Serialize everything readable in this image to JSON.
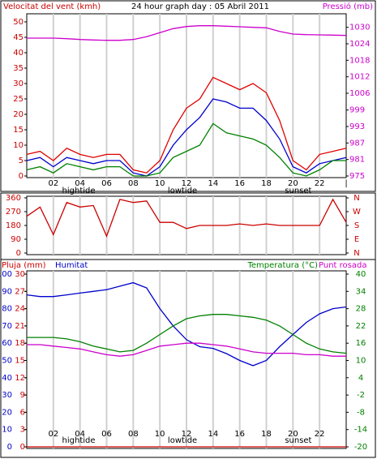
{
  "chart_data": [
    {
      "type": "line",
      "title": "24 hour graph day : 05 Abril 2011",
      "y_label": "Velocitat del vent (kmh)",
      "y2_label": "Pressió (mb)",
      "x": [
        0,
        1,
        2,
        3,
        4,
        5,
        6,
        7,
        8,
        9,
        10,
        11,
        12,
        13,
        14,
        15,
        16,
        17,
        18,
        19,
        20,
        21,
        22,
        23,
        24
      ],
      "xlim": [
        0,
        24
      ],
      "xticks": [
        {
          "value": 2,
          "label": "02"
        },
        {
          "value": 4,
          "label": "04"
        },
        {
          "value": 6,
          "label": "06"
        },
        {
          "value": 8,
          "label": "08"
        },
        {
          "value": 10,
          "label": "10"
        },
        {
          "value": 12,
          "label": "12"
        },
        {
          "value": 14,
          "label": "14"
        },
        {
          "value": 16,
          "label": "16"
        },
        {
          "value": 18,
          "label": "18"
        },
        {
          "value": 20,
          "label": "20"
        },
        {
          "value": 22,
          "label": "22"
        },
        {
          "value": 24,
          "label": "|"
        }
      ],
      "annotations": [
        {
          "x": 3.9,
          "text": "hightide"
        },
        {
          "x": 11.7,
          "text": "lowtide"
        },
        {
          "x": 20.4,
          "text": "sunset"
        }
      ],
      "ylim": [
        0,
        50
      ],
      "yticks": [
        0,
        5,
        10,
        15,
        20,
        25,
        30,
        35,
        40,
        45,
        50
      ],
      "y2lim": [
        975,
        1032
      ],
      "y2ticks": [
        975,
        {
          "value": 981.1,
          "label": "981"
        },
        {
          "value": 987.2,
          "label": "987"
        },
        {
          "value": 993.3,
          "label": "993"
        },
        {
          "value": 999.4,
          "label": "999"
        },
        {
          "value": 1005.6,
          "label": "1006"
        },
        {
          "value": 1011.7,
          "label": "1012"
        },
        {
          "value": 1017.8,
          "label": "1018"
        },
        {
          "value": 1023.9,
          "label": "1024"
        },
        1030
      ],
      "grid": true,
      "series": [
        {
          "color": "#e00000",
          "values": [
            7,
            8,
            5,
            9,
            7,
            6,
            7,
            7,
            2,
            1,
            5,
            15,
            22,
            25,
            32,
            30,
            28,
            30,
            27,
            18,
            5,
            2,
            7,
            8,
            9
          ]
        },
        {
          "color": "#0000cc",
          "values": [
            5,
            6,
            3,
            6,
            5,
            4,
            5,
            5,
            1,
            0,
            3,
            10,
            15,
            19,
            25,
            24,
            22,
            22,
            18,
            12,
            3,
            1,
            4,
            5,
            6
          ]
        },
        {
          "color": "#008000",
          "values": [
            2,
            3,
            1,
            4,
            3,
            2,
            3,
            3,
            0,
            0,
            1,
            6,
            8,
            10,
            17,
            14,
            13,
            12,
            10,
            6,
            1,
            0,
            2,
            5,
            5
          ]
        },
        {
          "color": "#cc00cc",
          "axis": "y2",
          "values": [
            1026,
            1026,
            1026,
            1025.8,
            1025.5,
            1025.3,
            1025.2,
            1025.2,
            1025.5,
            1026.5,
            1028,
            1029.5,
            1030.3,
            1030.6,
            1030.6,
            1030.4,
            1030.2,
            1030,
            1029.8,
            1028.5,
            1027.5,
            1027.3,
            1027.2,
            1027.1,
            1027
          ]
        }
      ]
    },
    {
      "type": "line",
      "x": [
        0,
        1,
        2,
        3,
        4,
        5,
        6,
        7,
        8,
        9,
        10,
        11,
        12,
        13,
        14,
        15,
        16,
        17,
        18,
        19,
        20,
        21,
        22,
        23,
        24
      ],
      "xlim": [
        0,
        24
      ],
      "ylim": [
        0,
        360
      ],
      "yticks": [
        0,
        90,
        180,
        270,
        360
      ],
      "y2lim": [
        0,
        360
      ],
      "y2ticks": [
        {
          "value": 0,
          "label": "N"
        },
        {
          "value": 90,
          "label": "E"
        },
        {
          "value": 180,
          "label": "S"
        },
        {
          "value": 270,
          "label": "W"
        },
        {
          "value": 360,
          "label": "N"
        }
      ],
      "series": [
        {
          "color": "#cc0000",
          "values": [
            240,
            300,
            120,
            330,
            300,
            310,
            110,
            350,
            330,
            340,
            200,
            200,
            160,
            180,
            180,
            180,
            190,
            180,
            190,
            180,
            180,
            180,
            180,
            350,
            200
          ]
        }
      ]
    },
    {
      "type": "line",
      "y_label": "Pluja (mm)",
      "y3_label": "Humitat",
      "y2_label": "Temperatura (°C)",
      "y2_label2": "Punt rosada",
      "x": [
        0,
        1,
        2,
        3,
        4,
        5,
        6,
        7,
        8,
        9,
        10,
        11,
        12,
        13,
        14,
        15,
        16,
        17,
        18,
        19,
        20,
        21,
        22,
        23,
        24
      ],
      "xlim": [
        0,
        24
      ],
      "xticks": [
        {
          "value": 2,
          "label": "02"
        },
        {
          "value": 4,
          "label": "04"
        },
        {
          "value": 6,
          "label": "06"
        },
        {
          "value": 8,
          "label": "08"
        },
        {
          "value": 10,
          "label": "10"
        },
        {
          "value": 12,
          "label": "12"
        },
        {
          "value": 14,
          "label": "14"
        },
        {
          "value": 16,
          "label": "16"
        },
        {
          "value": 18,
          "label": "18"
        },
        {
          "value": 20,
          "label": "20"
        },
        {
          "value": 22,
          "label": "22"
        },
        {
          "value": 24,
          "label": "|"
        }
      ],
      "annotations": [
        {
          "x": 3.9,
          "text": "hightide"
        },
        {
          "x": 11.7,
          "text": "lowtide"
        },
        {
          "x": 20.4,
          "text": "sunset"
        }
      ],
      "ylim": [
        0,
        30
      ],
      "yticks": [
        0,
        3,
        6,
        9,
        12,
        15,
        18,
        21,
        24,
        27,
        30
      ],
      "y3lim": [
        0,
        100
      ],
      "y3ticks": [
        0,
        10,
        20,
        30,
        40,
        50,
        60,
        70,
        80,
        90,
        100
      ],
      "y2lim": [
        -20,
        40
      ],
      "y2ticks": [
        -20,
        -14,
        -8,
        -2,
        4,
        10,
        16,
        22,
        28,
        34,
        40
      ],
      "grid": true,
      "series": [
        {
          "color": "#cc0000",
          "values": [
            0,
            0,
            0,
            0,
            0,
            0,
            0,
            0,
            0,
            0,
            0,
            0,
            0,
            0,
            0,
            0,
            0,
            0,
            0,
            0,
            0,
            0,
            0,
            0,
            0
          ]
        },
        {
          "color": "#0000cc",
          "axis": "y3",
          "values": [
            88,
            87,
            87,
            88,
            89,
            90,
            91,
            93,
            95,
            92,
            80,
            70,
            62,
            58,
            57,
            54,
            50,
            47,
            50,
            58,
            65,
            72,
            77,
            80,
            81
          ]
        },
        {
          "color": "#008000",
          "axis": "y2",
          "values": [
            18,
            18,
            18,
            17.5,
            16.5,
            15,
            14,
            13,
            13.5,
            16,
            19,
            22,
            24.5,
            25.5,
            26,
            26,
            25.5,
            25,
            24,
            22,
            19,
            16,
            14,
            13,
            12.5
          ]
        },
        {
          "color": "#cc00cc",
          "axis": "y2",
          "values": [
            15.5,
            15.5,
            15,
            14.5,
            14,
            13,
            12,
            11.5,
            12,
            13.5,
            15,
            15.5,
            16,
            16,
            15.5,
            15,
            14,
            13,
            12.5,
            12.5,
            12.5,
            12,
            12,
            11.5,
            11.5
          ]
        }
      ]
    }
  ]
}
